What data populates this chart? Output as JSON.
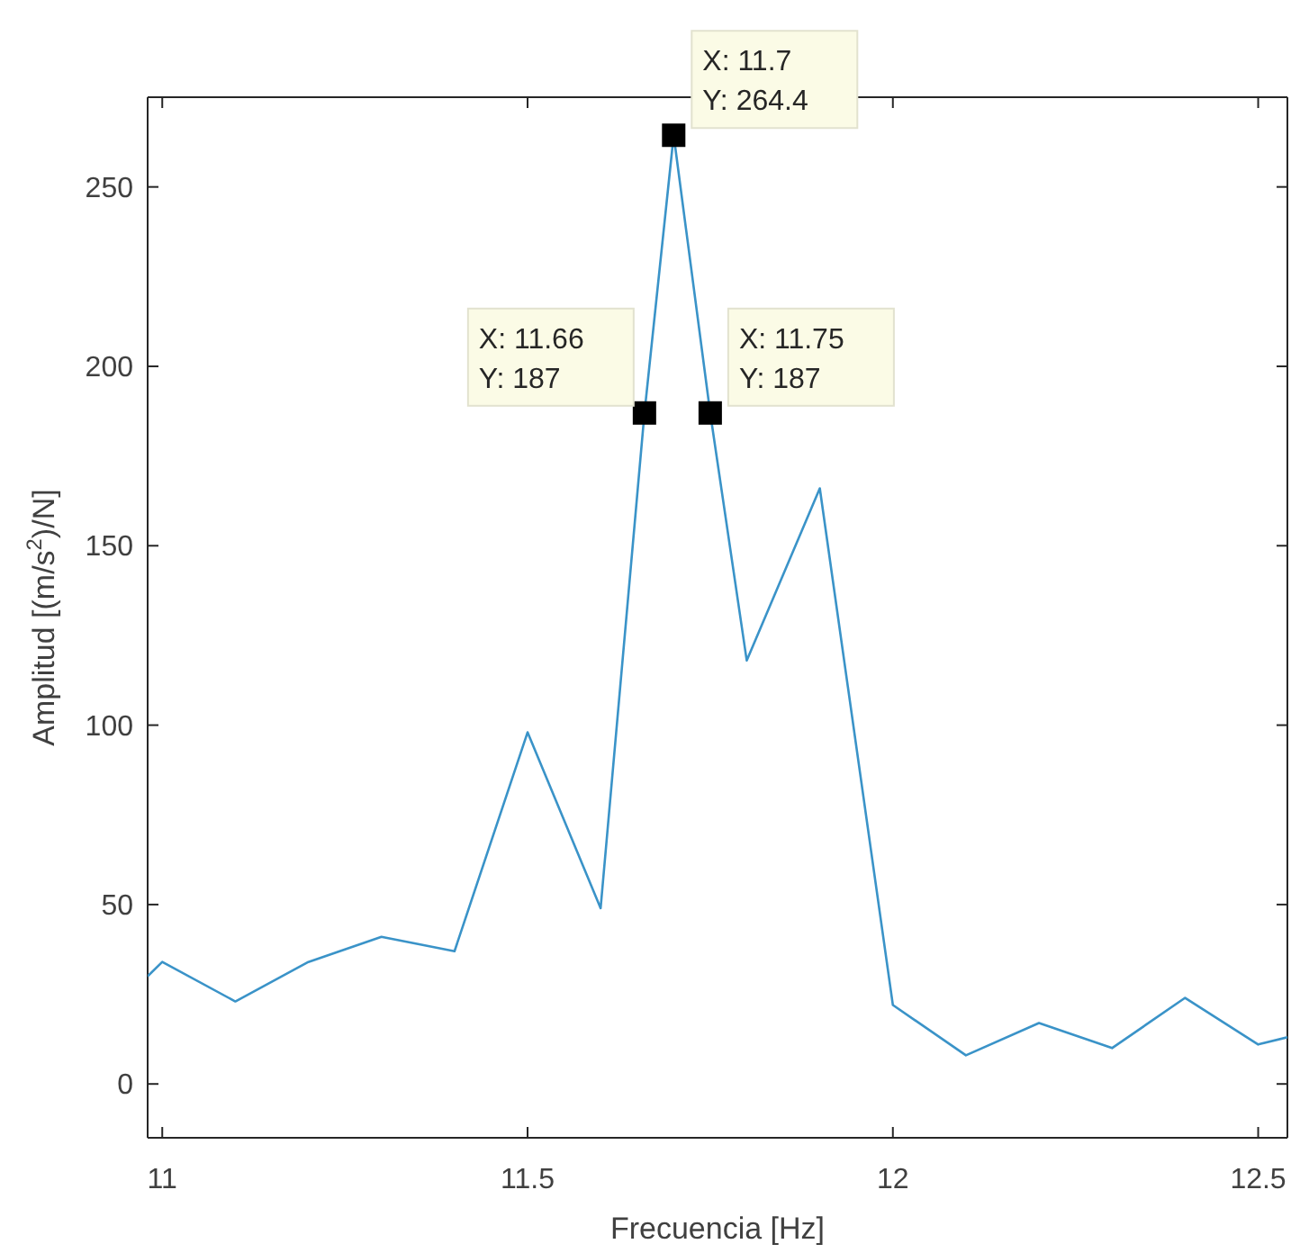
{
  "chart_data": {
    "type": "line",
    "xlabel": "Frecuencia [Hz]",
    "ylabel": "Amplitud [(m/s$^{2}$)/N]",
    "xlim": [
      10.98,
      12.54
    ],
    "ylim": [
      -15,
      275
    ],
    "xticks": [
      11,
      11.5,
      12,
      12.5
    ],
    "yticks": [
      0,
      50,
      100,
      150,
      200,
      250
    ],
    "grid": false,
    "series": [
      {
        "color": "#3a93c8",
        "marker": "none",
        "x": [
          10.98,
          11.0,
          11.1,
          11.2,
          11.3,
          11.4,
          11.5,
          11.6,
          11.66,
          11.7,
          11.75,
          11.8,
          11.9,
          12.0,
          12.1,
          12.2,
          12.3,
          12.4,
          12.5,
          12.54
        ],
        "values": [
          30,
          34,
          23,
          34,
          41,
          37,
          98,
          49,
          187,
          264.4,
          187,
          118,
          166,
          22,
          8,
          17,
          10,
          24,
          11,
          13
        ]
      },
      {
        "type": "scatter",
        "color": "#000000",
        "marker": "square",
        "x": [
          11.66,
          11.7,
          11.75
        ],
        "values": [
          187,
          264.4,
          187
        ]
      }
    ],
    "annotations": [
      {
        "text": "X: 11.7\nY: 264.4",
        "x": 11.7,
        "y": 264.4
      },
      {
        "text": "X: 11.66\nY: 187",
        "x": 11.66,
        "y": 187
      },
      {
        "text": "X: 11.75\nY: 187",
        "x": 11.75,
        "y": 187
      }
    ]
  }
}
